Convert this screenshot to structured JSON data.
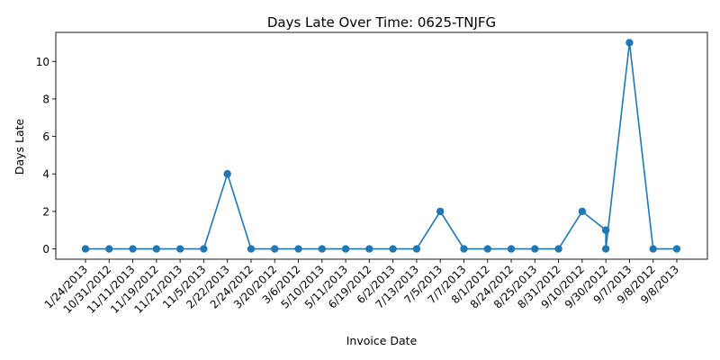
{
  "chart_data": {
    "type": "line",
    "title": "Days Late Over Time: 0625-TNJFG",
    "xlabel": "Invoice Date",
    "ylabel": "Days Late",
    "ylim": [
      -0.55,
      11.55
    ],
    "yticks": [
      0,
      2,
      4,
      6,
      8,
      10
    ],
    "grid": false,
    "color": "#1f77b4",
    "categories": [
      "1/24/2013",
      "10/31/2012",
      "11/11/2013",
      "11/19/2012",
      "11/21/2013",
      "11/5/2013",
      "2/22/2013",
      "2/24/2012",
      "3/20/2012",
      "3/6/2012",
      "5/10/2013",
      "5/11/2013",
      "6/19/2012",
      "6/2/2013",
      "7/13/2013",
      "7/5/2013",
      "7/7/2013",
      "8/1/2012",
      "8/24/2012",
      "8/25/2013",
      "8/31/2012",
      "9/10/2012",
      "9/30/2012",
      "9/7/2013",
      "9/8/2012",
      "9/8/2013"
    ],
    "points": [
      {
        "x": "1/24/2013",
        "y": 0
      },
      {
        "x": "10/31/2012",
        "y": 0
      },
      {
        "x": "11/11/2013",
        "y": 0
      },
      {
        "x": "11/19/2012",
        "y": 0
      },
      {
        "x": "11/21/2013",
        "y": 0
      },
      {
        "x": "11/5/2013",
        "y": 0
      },
      {
        "x": "2/22/2013",
        "y": 4
      },
      {
        "x": "2/24/2012",
        "y": 0
      },
      {
        "x": "3/20/2012",
        "y": 0
      },
      {
        "x": "3/6/2012",
        "y": 0
      },
      {
        "x": "5/10/2013",
        "y": 0
      },
      {
        "x": "5/11/2013",
        "y": 0
      },
      {
        "x": "6/19/2012",
        "y": 0
      },
      {
        "x": "6/2/2013",
        "y": 0
      },
      {
        "x": "7/13/2013",
        "y": 0
      },
      {
        "x": "7/5/2013",
        "y": 2
      },
      {
        "x": "7/7/2013",
        "y": 0
      },
      {
        "x": "8/1/2012",
        "y": 0
      },
      {
        "x": "8/24/2012",
        "y": 0
      },
      {
        "x": "8/25/2013",
        "y": 0
      },
      {
        "x": "8/31/2012",
        "y": 0
      },
      {
        "x": "9/10/2012",
        "y": 2
      },
      {
        "x": "9/30/2012",
        "y": 1
      },
      {
        "x": "9/30/2012",
        "y": 0
      },
      {
        "x": "9/7/2013",
        "y": 11
      },
      {
        "x": "9/8/2012",
        "y": 0
      },
      {
        "x": "9/8/2013",
        "y": 0
      }
    ]
  }
}
